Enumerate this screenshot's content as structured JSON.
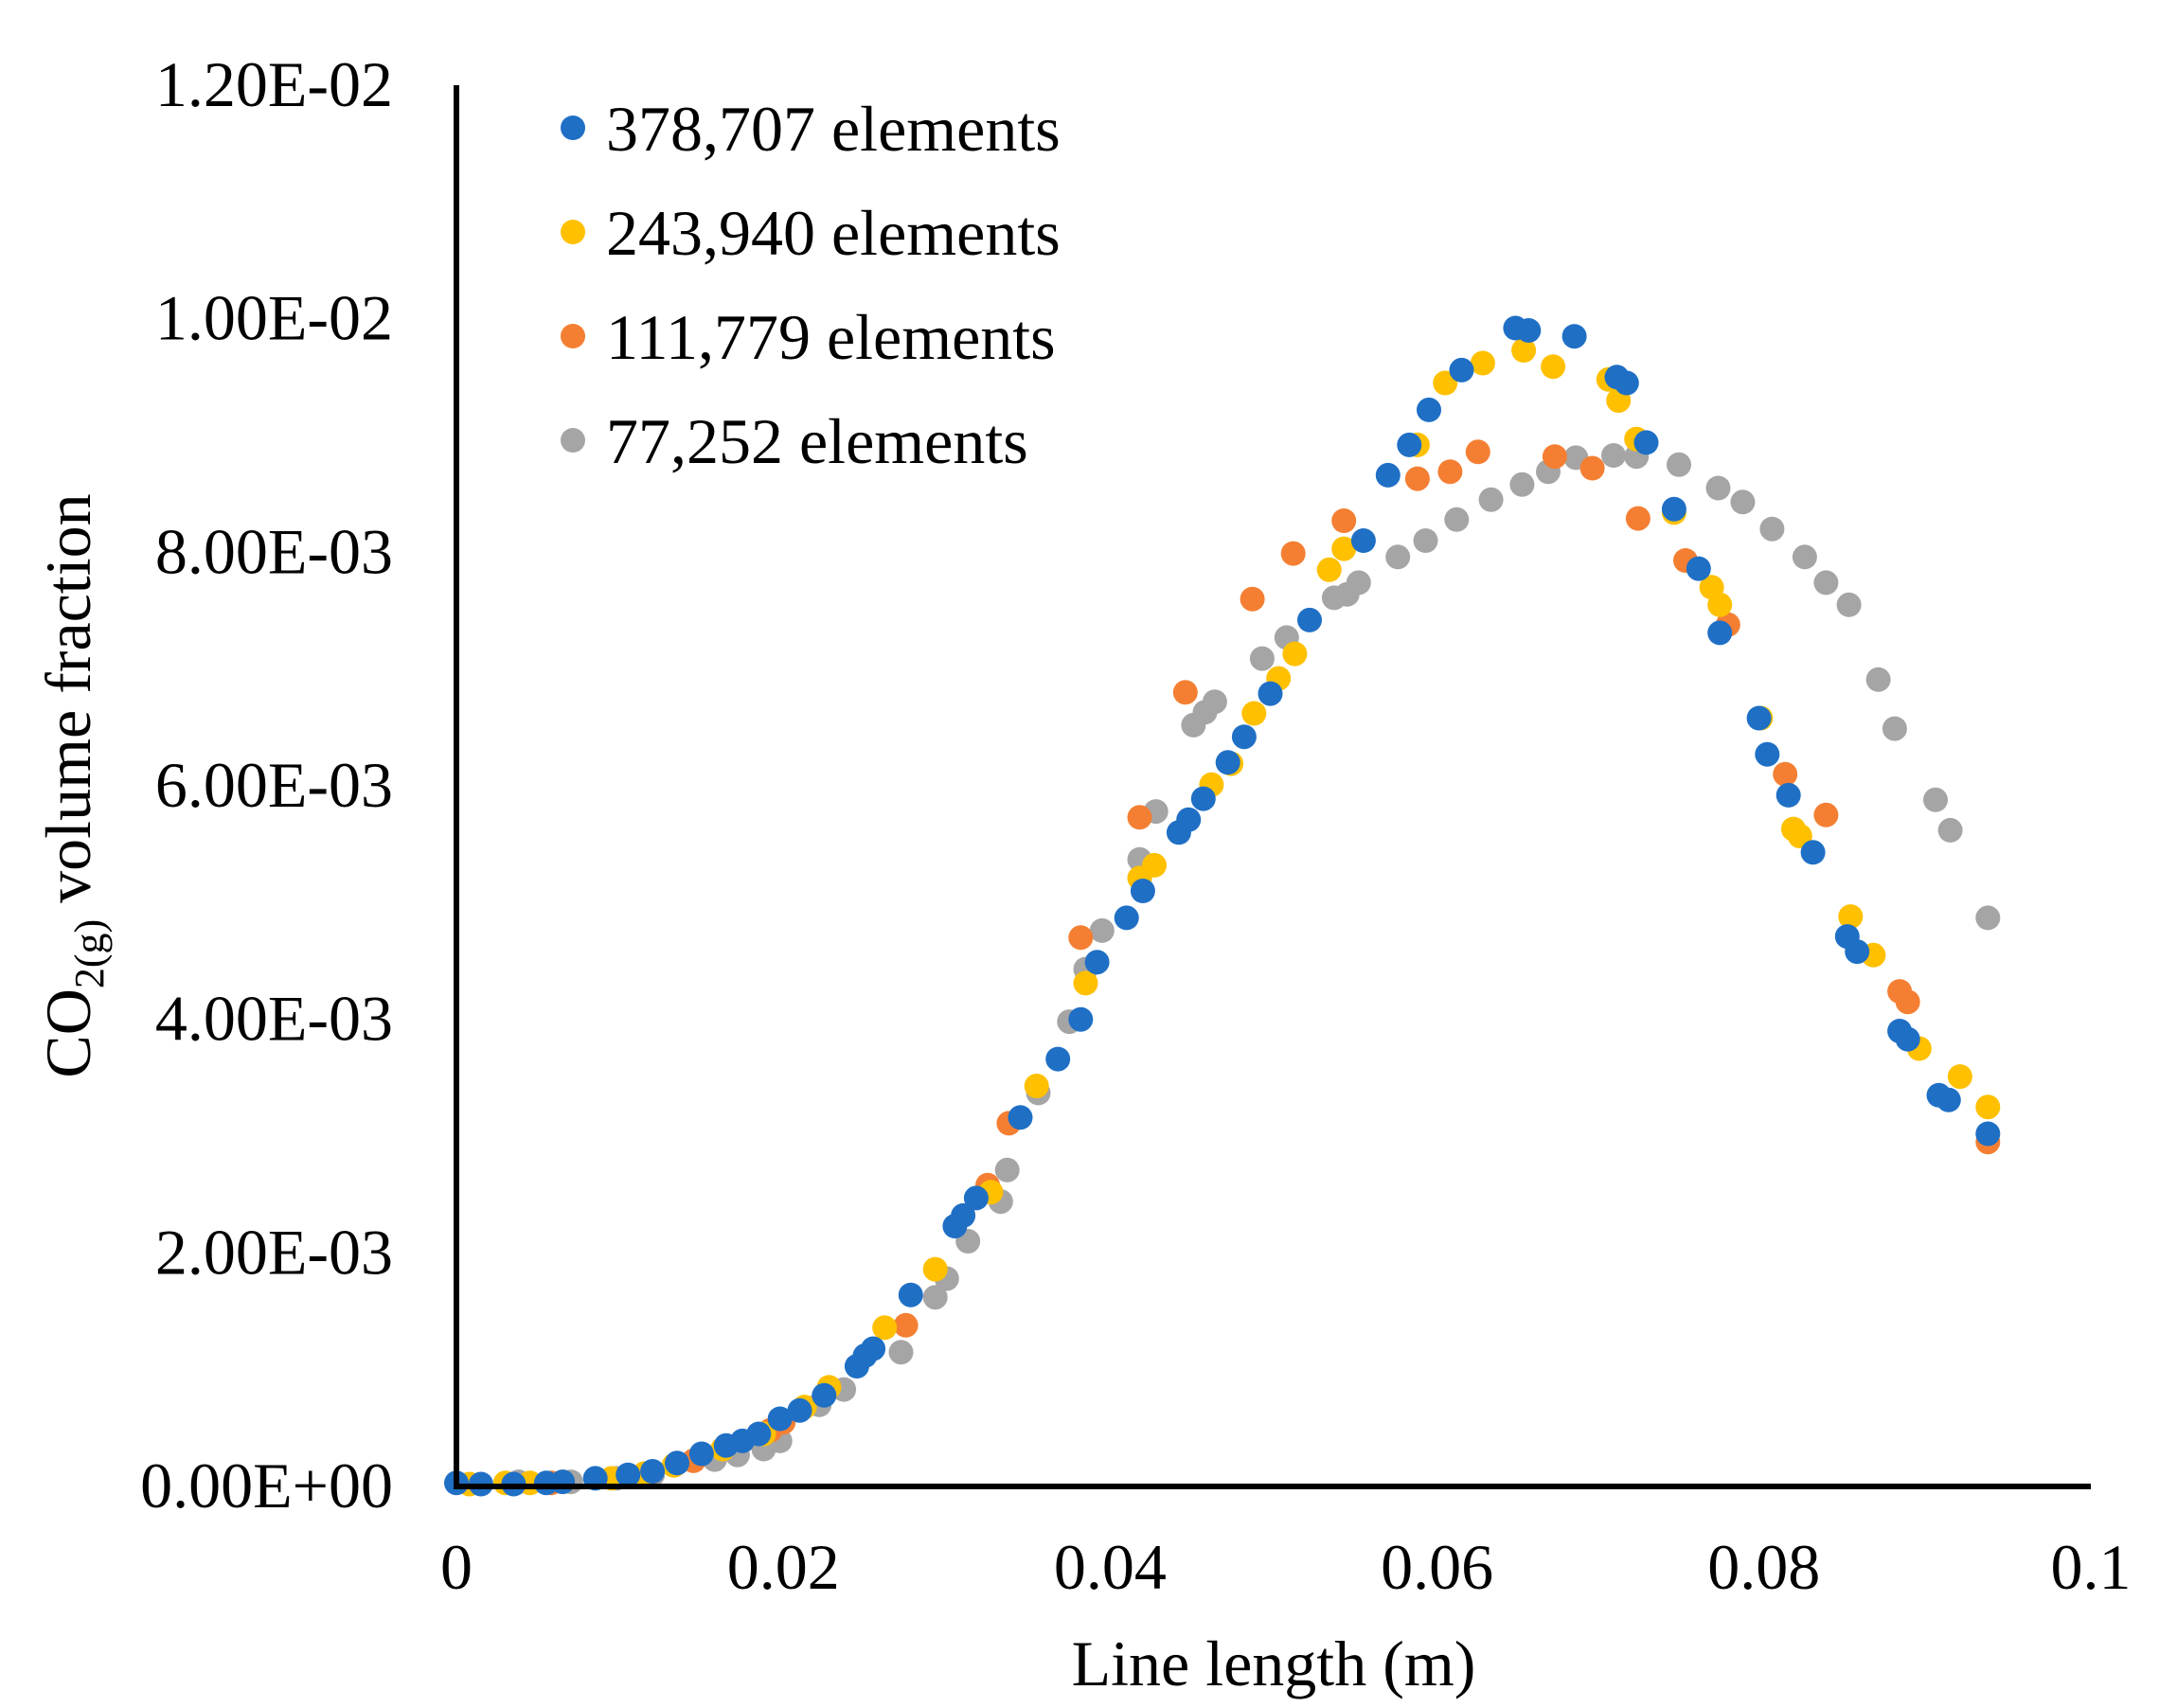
{
  "chart_data": {
    "type": "scatter",
    "title": "",
    "xlabel": "Line length (m)",
    "ylabel": {
      "prefix": "CO",
      "subscript": "2(g)",
      "suffix": " volume fraction"
    },
    "xlim": [
      0,
      0.1
    ],
    "ylim": [
      0,
      0.012
    ],
    "x_ticks": [
      {
        "value": 0,
        "label": "0"
      },
      {
        "value": 0.02,
        "label": "0.02"
      },
      {
        "value": 0.04,
        "label": "0.04"
      },
      {
        "value": 0.06,
        "label": "0.06"
      },
      {
        "value": 0.08,
        "label": "0.08"
      },
      {
        "value": 0.1,
        "label": "0.1"
      }
    ],
    "y_ticks": [
      {
        "value": 0,
        "label": "0.00E+00"
      },
      {
        "value": 0.002,
        "label": "2.00E-03"
      },
      {
        "value": 0.004,
        "label": "4.00E-03"
      },
      {
        "value": 0.006,
        "label": "6.00E-03"
      },
      {
        "value": 0.008,
        "label": "8.00E-03"
      },
      {
        "value": 0.01,
        "label": "1.00E-02"
      },
      {
        "value": 0.012,
        "label": "1.20E-02"
      }
    ],
    "grid": false,
    "legend_position": "top-left",
    "series": [
      {
        "name": "378,707 elements",
        "color": "#1f6fc5",
        "points": [
          [
            0,
            3e-05
          ],
          [
            0.0015,
            2e-05
          ],
          [
            0.0035,
            2e-05
          ],
          [
            0.0055,
            3e-05
          ],
          [
            0.0065,
            4e-05
          ],
          [
            0.0085,
            7e-05
          ],
          [
            0.0105,
            0.0001
          ],
          [
            0.012,
            0.00013
          ],
          [
            0.0135,
            0.0002
          ],
          [
            0.015,
            0.00028
          ],
          [
            0.0165,
            0.00035
          ],
          [
            0.0175,
            0.00039
          ],
          [
            0.0185,
            0.00045
          ],
          [
            0.0198,
            0.00058
          ],
          [
            0.021,
            0.00065
          ],
          [
            0.0225,
            0.00078
          ],
          [
            0.0245,
            0.00103
          ],
          [
            0.025,
            0.00112
          ],
          [
            0.0255,
            0.00118
          ],
          [
            0.0278,
            0.00164
          ],
          [
            0.0305,
            0.00223
          ],
          [
            0.031,
            0.00232
          ],
          [
            0.0318,
            0.00247
          ],
          [
            0.0345,
            0.00316
          ],
          [
            0.0368,
            0.00366
          ],
          [
            0.0382,
            0.004
          ],
          [
            0.0392,
            0.00449
          ],
          [
            0.041,
            0.00487
          ],
          [
            0.042,
            0.0051
          ],
          [
            0.0442,
            0.0056
          ],
          [
            0.0448,
            0.00571
          ],
          [
            0.0457,
            0.00589
          ],
          [
            0.0472,
            0.0062
          ],
          [
            0.0482,
            0.00642
          ],
          [
            0.0498,
            0.00679
          ],
          [
            0.0522,
            0.00742
          ],
          [
            0.0555,
            0.0081
          ],
          [
            0.057,
            0.00866
          ],
          [
            0.0583,
            0.00892
          ],
          [
            0.0595,
            0.00922
          ],
          [
            0.0615,
            0.00956
          ],
          [
            0.0648,
            0.00992
          ],
          [
            0.0656,
            0.0099
          ],
          [
            0.0684,
            0.00985
          ],
          [
            0.071,
            0.0095
          ],
          [
            0.0716,
            0.00945
          ],
          [
            0.0728,
            0.00894
          ],
          [
            0.0745,
            0.00837
          ],
          [
            0.076,
            0.00786
          ],
          [
            0.0773,
            0.00731
          ],
          [
            0.0797,
            0.00658
          ],
          [
            0.0802,
            0.00627
          ],
          [
            0.0815,
            0.00592
          ],
          [
            0.083,
            0.00543
          ],
          [
            0.0851,
            0.00471
          ],
          [
            0.0857,
            0.00458
          ],
          [
            0.0883,
            0.0039
          ],
          [
            0.0888,
            0.00383
          ],
          [
            0.0907,
            0.00335
          ],
          [
            0.0913,
            0.00331
          ],
          [
            0.0937,
            0.00302
          ]
        ]
      },
      {
        "name": "243,940 elements",
        "color": "#ffc000",
        "points": [
          [
            0.0008,
            2e-05
          ],
          [
            0.003,
            3e-05
          ],
          [
            0.0045,
            3e-05
          ],
          [
            0.0065,
            4e-05
          ],
          [
            0.0095,
            7e-05
          ],
          [
            0.0115,
            0.00011
          ],
          [
            0.0133,
            0.00018
          ],
          [
            0.0163,
            0.00032
          ],
          [
            0.0188,
            0.00045
          ],
          [
            0.0213,
            0.00068
          ],
          [
            0.0228,
            0.00085
          ],
          [
            0.0262,
            0.00136
          ],
          [
            0.0293,
            0.00186
          ],
          [
            0.0327,
            0.00252
          ],
          [
            0.0355,
            0.00343
          ],
          [
            0.0385,
            0.00431
          ],
          [
            0.0418,
            0.00521
          ],
          [
            0.0427,
            0.00532
          ],
          [
            0.0462,
            0.00601
          ],
          [
            0.0474,
            0.00619
          ],
          [
            0.0488,
            0.00662
          ],
          [
            0.0503,
            0.00692
          ],
          [
            0.0513,
            0.00713
          ],
          [
            0.0534,
            0.00785
          ],
          [
            0.0543,
            0.00803
          ],
          [
            0.0588,
            0.00892
          ],
          [
            0.0605,
            0.00945
          ],
          [
            0.0628,
            0.00962
          ],
          [
            0.0653,
            0.00973
          ],
          [
            0.0671,
            0.00959
          ],
          [
            0.0705,
            0.00948
          ],
          [
            0.0711,
            0.0093
          ],
          [
            0.0722,
            0.00897
          ],
          [
            0.0745,
            0.00834
          ],
          [
            0.0768,
            0.0077
          ],
          [
            0.0773,
            0.00755
          ],
          [
            0.0798,
            0.00658
          ],
          [
            0.0818,
            0.00563
          ],
          [
            0.0822,
            0.00557
          ],
          [
            0.0853,
            0.00488
          ],
          [
            0.0867,
            0.00455
          ],
          [
            0.0895,
            0.00375
          ],
          [
            0.092,
            0.00351
          ],
          [
            0.0937,
            0.00325
          ]
        ]
      },
      {
        "name": "111,779 elements",
        "color": "#f47f33",
        "points": [
          [
            0.0058,
            3e-05
          ],
          [
            0.0118,
            0.00011
          ],
          [
            0.0145,
            0.00022
          ],
          [
            0.0192,
            0.00048
          ],
          [
            0.02,
            0.00055
          ],
          [
            0.0275,
            0.00138
          ],
          [
            0.0325,
            0.00258
          ],
          [
            0.0338,
            0.00311
          ],
          [
            0.0382,
            0.0047
          ],
          [
            0.0418,
            0.00573
          ],
          [
            0.0446,
            0.0068
          ],
          [
            0.0487,
            0.0076
          ],
          [
            0.0512,
            0.00799
          ],
          [
            0.0543,
            0.00827
          ],
          [
            0.0588,
            0.00863
          ],
          [
            0.0608,
            0.00869
          ],
          [
            0.0625,
            0.00886
          ],
          [
            0.0672,
            0.00882
          ],
          [
            0.0695,
            0.00872
          ],
          [
            0.0723,
            0.00829
          ],
          [
            0.0752,
            0.00793
          ],
          [
            0.0778,
            0.00738
          ],
          [
            0.0813,
            0.0061
          ],
          [
            0.0838,
            0.00575
          ],
          [
            0.0883,
            0.00424
          ],
          [
            0.0888,
            0.00415
          ],
          [
            0.0937,
            0.00295
          ]
        ]
      },
      {
        "name": "77,252 elements",
        "color": "#a5a5a5",
        "points": [
          [
            0.0038,
            4e-05
          ],
          [
            0.007,
            4e-05
          ],
          [
            0.0098,
            7e-05
          ],
          [
            0.012,
            0.0001
          ],
          [
            0.0158,
            0.00023
          ],
          [
            0.0172,
            0.00027
          ],
          [
            0.0188,
            0.00032
          ],
          [
            0.0198,
            0.00039
          ],
          [
            0.0222,
            0.0007
          ],
          [
            0.0237,
            0.00083
          ],
          [
            0.0272,
            0.00115
          ],
          [
            0.0293,
            0.00162
          ],
          [
            0.03,
            0.00178
          ],
          [
            0.0313,
            0.0021
          ],
          [
            0.0333,
            0.00244
          ],
          [
            0.0337,
            0.00271
          ],
          [
            0.0356,
            0.00337
          ],
          [
            0.0375,
            0.00398
          ],
          [
            0.0385,
            0.00443
          ],
          [
            0.0395,
            0.00476
          ],
          [
            0.0418,
            0.00537
          ],
          [
            0.0428,
            0.00578
          ],
          [
            0.0451,
            0.00652
          ],
          [
            0.0458,
            0.00663
          ],
          [
            0.0464,
            0.00672
          ],
          [
            0.0493,
            0.00709
          ],
          [
            0.0508,
            0.00727
          ],
          [
            0.0537,
            0.00761
          ],
          [
            0.0545,
            0.00764
          ],
          [
            0.0552,
            0.00774
          ],
          [
            0.0576,
            0.00796
          ],
          [
            0.0593,
            0.0081
          ],
          [
            0.0612,
            0.00828
          ],
          [
            0.0633,
            0.00845
          ],
          [
            0.0652,
            0.00858
          ],
          [
            0.0668,
            0.00869
          ],
          [
            0.0685,
            0.00881
          ],
          [
            0.0708,
            0.00883
          ],
          [
            0.0722,
            0.00882
          ],
          [
            0.0748,
            0.00875
          ],
          [
            0.0772,
            0.00855
          ],
          [
            0.0787,
            0.00843
          ],
          [
            0.0805,
            0.0082
          ],
          [
            0.0825,
            0.00796
          ],
          [
            0.0838,
            0.00774
          ],
          [
            0.0852,
            0.00755
          ],
          [
            0.087,
            0.00691
          ],
          [
            0.088,
            0.00649
          ],
          [
            0.0905,
            0.00588
          ],
          [
            0.0914,
            0.00562
          ],
          [
            0.0937,
            0.00487
          ]
        ]
      }
    ]
  }
}
